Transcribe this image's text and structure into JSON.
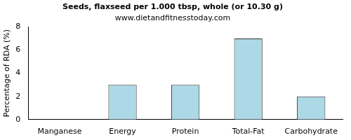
{
  "chart_data": {
    "type": "bar",
    "title": "Seeds, flaxseed per 1.000 tbsp, whole (or 10.30 g)",
    "subtitle": "www.dietandfitnesstoday.com",
    "y_label": "Percentage of RDA (%)",
    "categories": [
      "Manganese",
      "Energy",
      "Protein",
      "Total-Fat",
      "Carbohydrate"
    ],
    "values": [
      0,
      3,
      3,
      7,
      2
    ],
    "color": "#add8e6",
    "ylim": [
      0,
      8
    ],
    "yticks": [
      0,
      2,
      4,
      6,
      8
    ],
    "grid": false
  }
}
